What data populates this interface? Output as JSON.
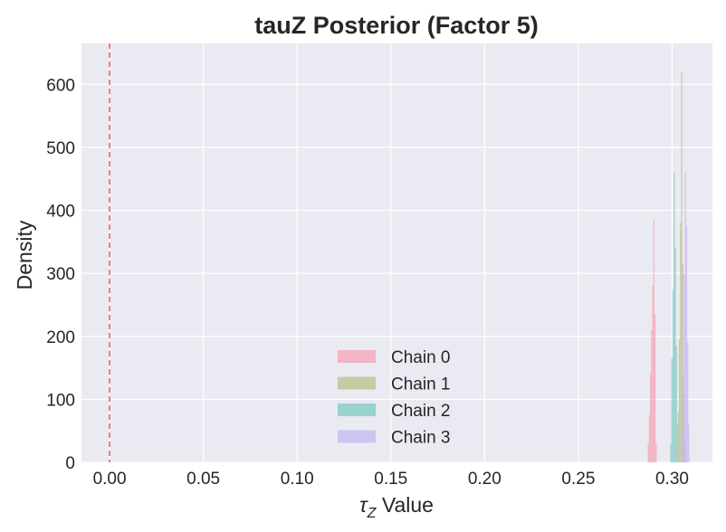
{
  "chart_data": {
    "type": "histogram",
    "title": "tauZ Posterior (Factor 5)",
    "xlabel_symbol": "τ",
    "xlabel_subscript": "Z",
    "xlabel_suffix": " Value",
    "ylabel": "Density",
    "xlim": [
      -0.015,
      0.3215
    ],
    "ylim": [
      0,
      665
    ],
    "x_ticks": [
      0.0,
      0.05,
      0.1,
      0.15,
      0.2,
      0.25,
      0.3
    ],
    "x_tick_labels": [
      "0.00",
      "0.05",
      "0.10",
      "0.15",
      "0.20",
      "0.25",
      "0.30"
    ],
    "y_ticks": [
      0,
      100,
      200,
      300,
      400,
      500,
      600
    ],
    "y_tick_labels": [
      "0",
      "100",
      "200",
      "300",
      "400",
      "500",
      "600"
    ],
    "grid": true,
    "legend_position": "lower-center",
    "reference_line": {
      "x": 0.0,
      "color": "#f0606a",
      "style": "dashed"
    },
    "series": [
      {
        "name": "Chain 0",
        "color": "#f4a3b4",
        "bins": [
          {
            "x0": 0.287,
            "x1": 0.2876,
            "density": 30
          },
          {
            "x0": 0.2876,
            "x1": 0.2882,
            "density": 75
          },
          {
            "x0": 0.2882,
            "x1": 0.2888,
            "density": 140
          },
          {
            "x0": 0.2888,
            "x1": 0.2894,
            "density": 210
          },
          {
            "x0": 0.2894,
            "x1": 0.29,
            "density": 280
          },
          {
            "x0": 0.29,
            "x1": 0.2906,
            "density": 385
          },
          {
            "x0": 0.2906,
            "x1": 0.2912,
            "density": 235
          },
          {
            "x0": 0.2912,
            "x1": 0.2918,
            "density": 30
          }
        ]
      },
      {
        "name": "Chain 1",
        "color": "#b9c08a",
        "bins": [
          {
            "x0": 0.303,
            "x1": 0.3036,
            "density": 80
          },
          {
            "x0": 0.3036,
            "x1": 0.3042,
            "density": 195
          },
          {
            "x0": 0.3042,
            "x1": 0.3048,
            "density": 380
          },
          {
            "x0": 0.3048,
            "x1": 0.3054,
            "density": 620
          },
          {
            "x0": 0.3054,
            "x1": 0.306,
            "density": 315
          },
          {
            "x0": 0.306,
            "x1": 0.3066,
            "density": 110
          },
          {
            "x0": 0.3066,
            "x1": 0.3072,
            "density": 30
          }
        ]
      },
      {
        "name": "Chain 2",
        "color": "#7fc9c4",
        "bins": [
          {
            "x0": 0.299,
            "x1": 0.2996,
            "density": 30
          },
          {
            "x0": 0.2996,
            "x1": 0.3002,
            "density": 165
          },
          {
            "x0": 0.3002,
            "x1": 0.3008,
            "density": 275
          },
          {
            "x0": 0.3008,
            "x1": 0.3014,
            "density": 460
          },
          {
            "x0": 0.3014,
            "x1": 0.302,
            "density": 340
          },
          {
            "x0": 0.302,
            "x1": 0.3026,
            "density": 185
          },
          {
            "x0": 0.3026,
            "x1": 0.3032,
            "density": 60
          }
        ]
      },
      {
        "name": "Chain 3",
        "color": "#c5b6f0",
        "bins": [
          {
            "x0": 0.305,
            "x1": 0.3056,
            "density": 50
          },
          {
            "x0": 0.3056,
            "x1": 0.3062,
            "density": 140
          },
          {
            "x0": 0.3062,
            "x1": 0.3068,
            "density": 300
          },
          {
            "x0": 0.3068,
            "x1": 0.3074,
            "density": 460
          },
          {
            "x0": 0.3074,
            "x1": 0.308,
            "density": 375
          },
          {
            "x0": 0.308,
            "x1": 0.3086,
            "density": 190
          },
          {
            "x0": 0.3086,
            "x1": 0.3092,
            "density": 60
          }
        ]
      }
    ]
  }
}
